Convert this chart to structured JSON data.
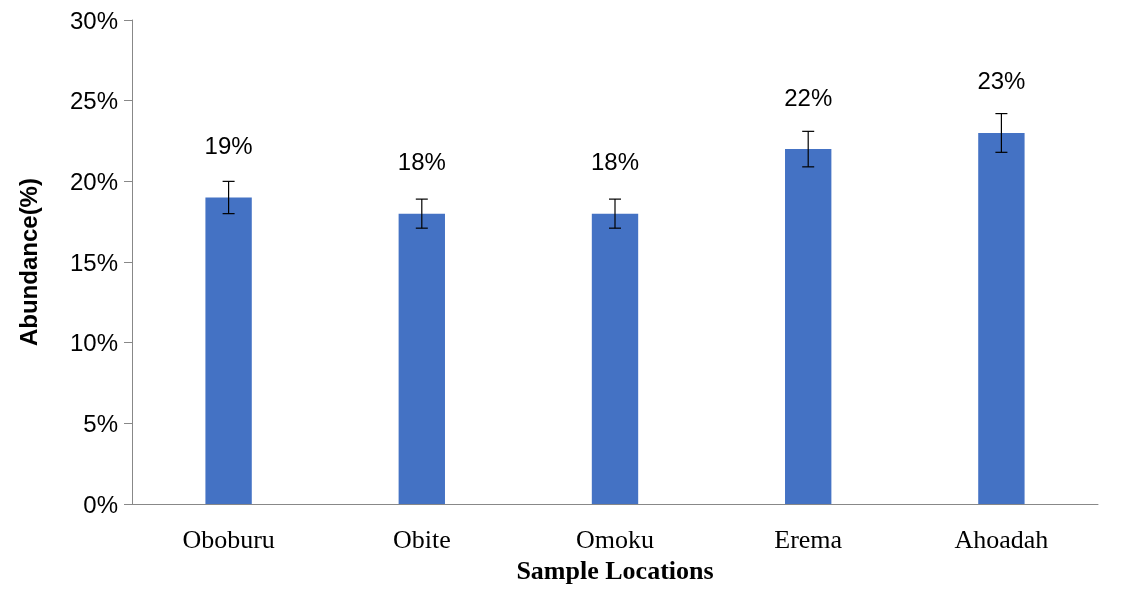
{
  "chart_data": {
    "type": "bar",
    "xlabel": "Sample Locations",
    "ylabel": "Abundance(%)",
    "categories": [
      "Oboburu",
      "Obite",
      "Omoku",
      "Erema",
      "Ahoadah"
    ],
    "values": [
      19,
      18,
      18,
      22,
      23
    ],
    "value_labels": [
      "19%",
      "18%",
      "18%",
      "22%",
      "23%"
    ],
    "errors": [
      1,
      0.9,
      0.9,
      1.1,
      1.2
    ],
    "color": "#4472c4",
    "ylim": [
      0,
      30
    ],
    "yticks": [
      {
        "value": 0,
        "label": "0%"
      },
      {
        "value": 5,
        "label": "5%"
      },
      {
        "value": 10,
        "label": "10%"
      },
      {
        "value": 15,
        "label": "15%"
      },
      {
        "value": 20,
        "label": "20%"
      },
      {
        "value": 25,
        "label": "25%"
      },
      {
        "value": 30,
        "label": "30%"
      }
    ],
    "grid": false
  }
}
